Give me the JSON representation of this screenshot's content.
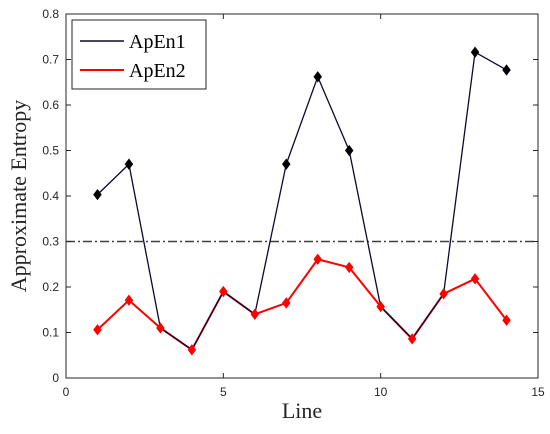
{
  "chart_data": {
    "type": "line",
    "xlabel": "Line",
    "ylabel": "Approximate Entropy",
    "xlim": [
      0,
      15
    ],
    "ylim": [
      0,
      0.8
    ],
    "xticks": [
      "0",
      "5",
      "10",
      "15"
    ],
    "yticks": [
      "0",
      "0.1",
      "0.2",
      "0.3",
      "0.4",
      "0.5",
      "0.6",
      "0.7",
      "0.8"
    ],
    "grid": false,
    "legend_position": "top-left",
    "threshold": 0.3,
    "threshold_color": "#404040",
    "series": [
      {
        "name": "ApEn1",
        "color": "#0a0a2e",
        "marker_color": "#000000",
        "x": [
          1,
          2,
          3,
          4,
          5,
          6,
          7,
          8,
          9,
          10,
          11,
          12,
          13,
          14
        ],
        "y": [
          0.403,
          0.47,
          0.11,
          0.062,
          0.19,
          0.14,
          0.47,
          0.662,
          0.5,
          0.157,
          0.086,
          0.185,
          0.716,
          0.677
        ],
        "markers": [
          true,
          true,
          false,
          false,
          false,
          false,
          true,
          true,
          true,
          false,
          false,
          false,
          true,
          true
        ]
      },
      {
        "name": "ApEn2",
        "color": "#ff0000",
        "marker_color": "#ff0000",
        "x": [
          1,
          2,
          3,
          4,
          5,
          6,
          7,
          8,
          9,
          10,
          11,
          12,
          13,
          14
        ],
        "y": [
          0.106,
          0.171,
          0.11,
          0.062,
          0.19,
          0.14,
          0.165,
          0.261,
          0.243,
          0.157,
          0.086,
          0.185,
          0.218,
          0.127
        ],
        "markers": [
          true,
          true,
          true,
          true,
          true,
          true,
          true,
          true,
          true,
          true,
          true,
          true,
          true,
          true
        ]
      }
    ]
  }
}
